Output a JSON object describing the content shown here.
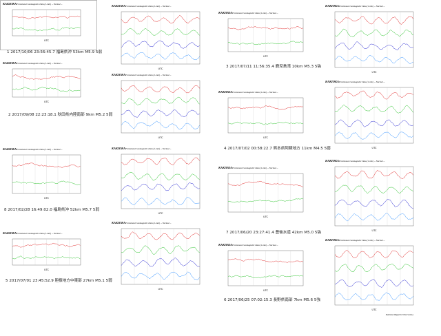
{
  "panels": [
    {
      "title": "KAKIOKA",
      "subtitle": "Provisional Geomagnetic Data (1-min) -- Normal --",
      "xlabel": "UTC",
      "caption": "1 2017/10/06 23:56:45.7 福島県沖 53km M5.9 5弱"
    },
    {
      "title": "KAKIOKA",
      "subtitle": "Provisional Geomagnetic Data (1-min) -- Normal --",
      "xlabel": "UTC",
      "caption": "2 2017/09/08 22:23:18.1 秋田県内陸南部 9km M5.2 5弱"
    },
    {
      "title": "KAKIOKA",
      "subtitle": "Provisional Geomagnetic Data (1-min) -- Normal --",
      "xlabel": "UTC",
      "caption": "8 2017/02/28 16:49:02.0 福島県沖 52km M5.7 5弱"
    },
    {
      "title": "KAKIOKA",
      "subtitle": "Provisional Geomagnetic Data (1-min) -- Normal --",
      "xlabel": "UTC",
      "caption": "5 2017/07/01 23:45:52.9 胆振地方中東部 27km M5.1 5弱"
    },
    {
      "title": "KAKIOKA",
      "subtitle": "Provisional Geomagnetic Data (1-min) -- Normal --",
      "xlabel": "UTC"
    },
    {
      "title": "KAKIOKA",
      "subtitle": "Provisional Geomagnetic Data (1-min) -- Normal --",
      "xlabel": "UTC"
    },
    {
      "title": "KAKIOKA",
      "subtitle": "Provisional Geomagnetic Data (1-min) -- Normal --",
      "xlabel": "UTC"
    },
    {
      "title": "KAKIOKA",
      "subtitle": "Provisional Geomagnetic Data (1-min) -- Normal --",
      "xlabel": "UTC"
    },
    {
      "title": "KAKIOKA",
      "subtitle": "Provisional Geomagnetic Data (1-min) -- Normal --",
      "xlabel": "UTC",
      "caption": "3 2017/07/11 11:56:35.4 鹿児島湾 10km M5.3 5強"
    },
    {
      "title": "KAKIOKA",
      "subtitle": "Provisional Geomagnetic Data (1-min) -- Normal --",
      "xlabel": "UTC",
      "caption": "4 2017/07/02 00:58:22.7 熊本県阿蘇地方 11km M4.5 5弱"
    },
    {
      "title": "KAKIOKA",
      "subtitle": "Provisional Geomagnetic Data (1-min) -- Normal --",
      "xlabel": "UTC",
      "caption": "7 2017/06/20 23:27:41.4 豊後水道 42km M5.0 5強"
    },
    {
      "title": "KAKIOKA",
      "subtitle": "Provisional Geomagnetic Data (1-min) -- Normal --",
      "xlabel": "UTC",
      "caption": "6 2017/06/25 07:02:15.3 長野県南部 7km M5.6 5強"
    },
    {
      "title": "KAKIOKA",
      "subtitle": "Provisional Geomagnetic Data (1-min) -- Normal --",
      "xlabel": "UTC"
    },
    {
      "title": "KAKIOKA",
      "subtitle": "Provisional Geomagnetic Data (1-min) -- Normal --",
      "xlabel": "UTC"
    },
    {
      "title": "KAKIOKA",
      "subtitle": "Provisional Geomagnetic Data (1-min) -- Normal --",
      "xlabel": "UTC"
    },
    {
      "title": "KAKIOKA",
      "subtitle": "Provisional Geomagnetic Data (1-min) -- Normal --",
      "xlabel": "UTC"
    }
  ],
  "footer": "Kakioka Magnetic Observatory"
}
